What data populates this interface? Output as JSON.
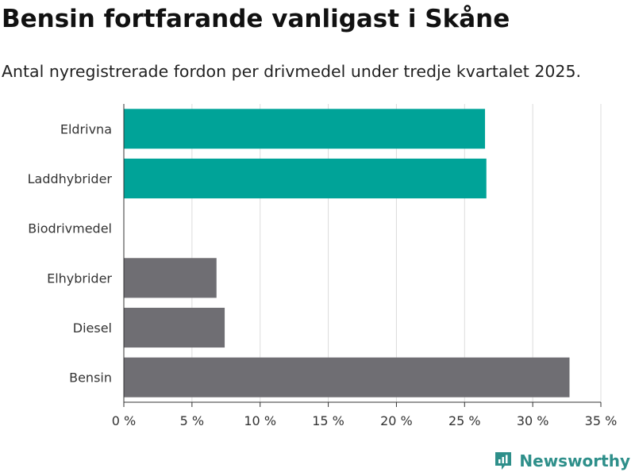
{
  "header": {
    "title": "Bensin fortfarande vanligast i Skåne",
    "subtitle": "Antal nyregistrerade fordon per drivmedel under tredje kvartalet 2025."
  },
  "brand": {
    "name": "Newsworthy",
    "icon": "newsworthy-logo-icon",
    "color": "#2e8f8a"
  },
  "chart_data": {
    "type": "bar",
    "orientation": "horizontal",
    "categories": [
      "Eldrivna",
      "Laddhybrider",
      "Biodrivmedel",
      "Elhybrider",
      "Diesel",
      "Bensin"
    ],
    "values": [
      26.5,
      26.6,
      0,
      6.8,
      7.4,
      32.7
    ],
    "colors": [
      "#00a398",
      "#00a398",
      "#00a398",
      "#6f6e73",
      "#6f6e73",
      "#6f6e73"
    ],
    "xlim": [
      0,
      35
    ],
    "xticks": [
      0,
      5,
      10,
      15,
      20,
      25,
      30,
      35
    ],
    "xtick_labels": [
      "0 %",
      "5 %",
      "10 %",
      "15 %",
      "20 %",
      "25 %",
      "30 %",
      "35 %"
    ],
    "grid": true,
    "legend": "none"
  }
}
